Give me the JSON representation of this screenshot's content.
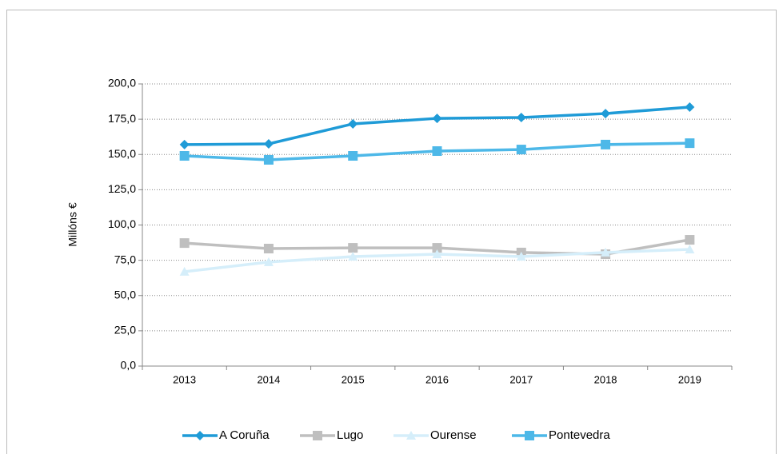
{
  "chart_data": {
    "type": "line",
    "ylabel": "Millóns €",
    "categories": [
      "2013",
      "2014",
      "2015",
      "2016",
      "2017",
      "2018",
      "2019"
    ],
    "series": [
      {
        "name": "A Coruña",
        "color": "#1f9bd7",
        "marker": "diamond",
        "values": [
          157,
          157.5,
          171.7,
          175.6,
          176.2,
          179,
          183.6
        ]
      },
      {
        "name": "Lugo",
        "color": "#bfbfbf",
        "marker": "square",
        "values": [
          87.2,
          83.3,
          83.8,
          83.8,
          80.5,
          79.3,
          89.5
        ]
      },
      {
        "name": "Ourense",
        "color": "#d5eefa",
        "marker": "triangle",
        "values": [
          66.9,
          73.7,
          77.6,
          79.3,
          77.6,
          80.5,
          82.7
        ]
      },
      {
        "name": "Pontevedra",
        "color": "#4db8e8",
        "marker": "square",
        "values": [
          149,
          146.2,
          149,
          152.4,
          153.5,
          157,
          158
        ]
      }
    ],
    "ylim": [
      0,
      200
    ],
    "yticks": [
      {
        "value": 0,
        "label": "0,0"
      },
      {
        "value": 25,
        "label": "25,0"
      },
      {
        "value": 50,
        "label": "50,0"
      },
      {
        "value": 75,
        "label": "75,0"
      },
      {
        "value": 100,
        "label": "100,0"
      },
      {
        "value": 125,
        "label": "125,0"
      },
      {
        "value": 150,
        "label": "150,0"
      },
      {
        "value": 175,
        "label": "175,0"
      },
      {
        "value": 200,
        "label": "200,0"
      }
    ],
    "grid": true,
    "legend": "bottom"
  }
}
